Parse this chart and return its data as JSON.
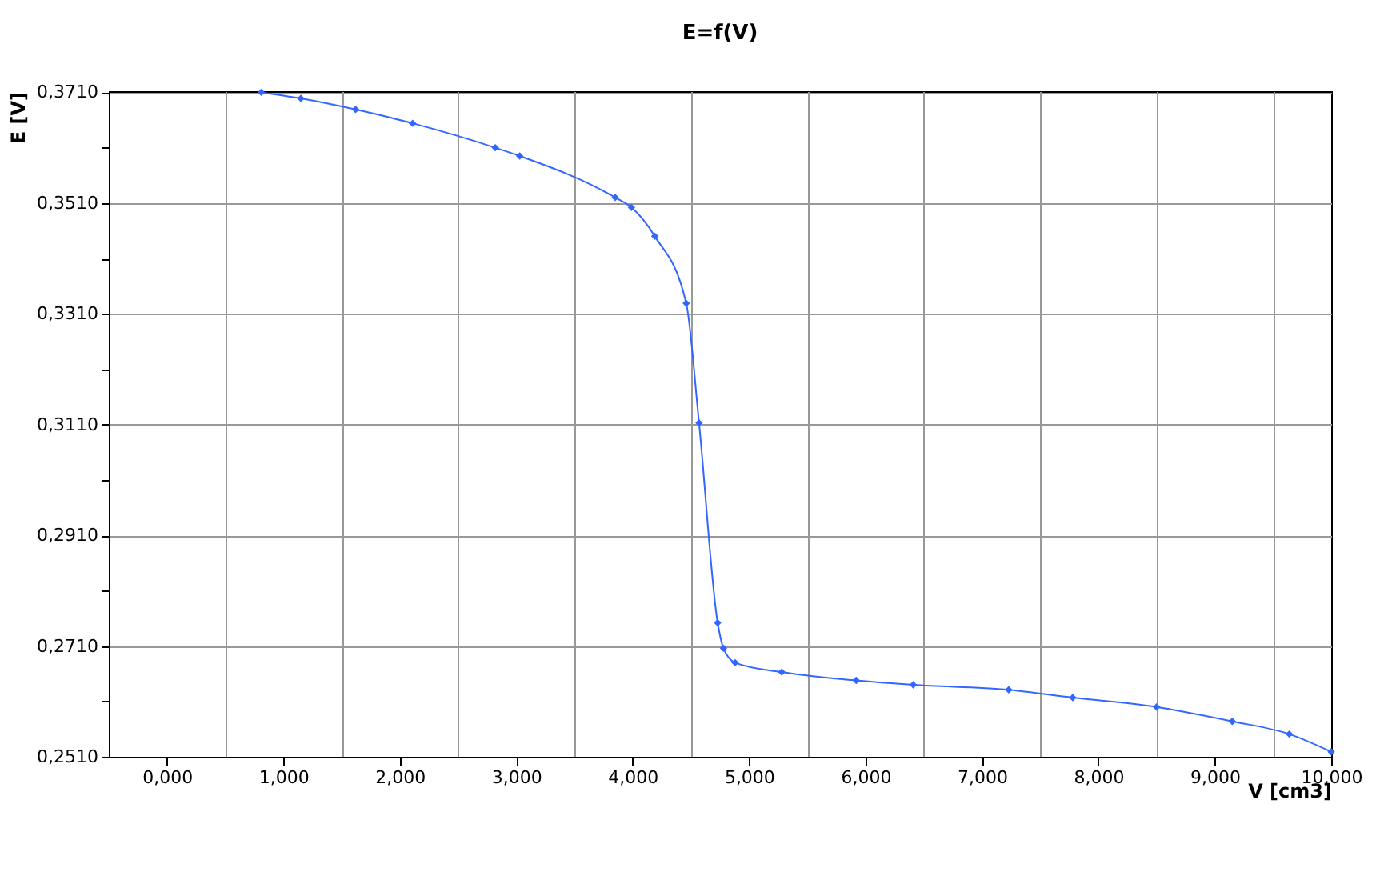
{
  "chart_data": {
    "type": "line",
    "title": "E=f(V)",
    "xlabel": "V [cm3]",
    "ylabel": "E [V]",
    "x": [
      0.81,
      1.15,
      1.62,
      2.11,
      2.82,
      3.03,
      3.85,
      3.99,
      4.19,
      4.46,
      4.57,
      4.73,
      4.78,
      4.88,
      5.28,
      5.92,
      6.41,
      7.23,
      7.78,
      8.5,
      9.15,
      9.64,
      10.0
    ],
    "series": [
      {
        "color": "#3366ff",
        "values": [
          0.371,
          0.3699,
          0.3679,
          0.3654,
          0.361,
          0.3595,
          0.352,
          0.3502,
          0.345,
          0.3329,
          0.3113,
          0.2752,
          0.2706,
          0.268,
          0.2663,
          0.2648,
          0.264,
          0.2631,
          0.2617,
          0.26,
          0.2574,
          0.2551,
          0.2519
        ]
      }
    ],
    "xlim": [
      -0.5,
      10
    ],
    "ylim": [
      0.251,
      0.3712
    ],
    "xticks": [
      {
        "value": 0,
        "label": "0,000"
      },
      {
        "value": 0.5,
        "label": null
      },
      {
        "value": 1,
        "label": "1,000"
      },
      {
        "value": 1.5,
        "label": null
      },
      {
        "value": 2,
        "label": "2,000"
      },
      {
        "value": 2.5,
        "label": null
      },
      {
        "value": 3,
        "label": "3,000"
      },
      {
        "value": 3.5,
        "label": null
      },
      {
        "value": 4,
        "label": "4,000"
      },
      {
        "value": 4.5,
        "label": null
      },
      {
        "value": 5,
        "label": "5,000"
      },
      {
        "value": 5.5,
        "label": null
      },
      {
        "value": 6,
        "label": "6,000"
      },
      {
        "value": 6.5,
        "label": null
      },
      {
        "value": 7,
        "label": "7,000"
      },
      {
        "value": 7.5,
        "label": null
      },
      {
        "value": 8,
        "label": "8,000"
      },
      {
        "value": 8.5,
        "label": null
      },
      {
        "value": 9,
        "label": "9,000"
      },
      {
        "value": 9.5,
        "label": null
      },
      {
        "value": 10,
        "label": "10,000"
      }
    ],
    "yticks": [
      {
        "value": 0.251,
        "label": "0,2510"
      },
      {
        "value": 0.261,
        "label": null
      },
      {
        "value": 0.271,
        "label": "0,2710"
      },
      {
        "value": 0.281,
        "label": null
      },
      {
        "value": 0.291,
        "label": "0,2910"
      },
      {
        "value": 0.301,
        "label": null
      },
      {
        "value": 0.311,
        "label": "0,3110"
      },
      {
        "value": 0.321,
        "label": null
      },
      {
        "value": 0.331,
        "label": "0,3310"
      },
      {
        "value": 0.341,
        "label": null
      },
      {
        "value": 0.351,
        "label": "0,3510"
      },
      {
        "value": 0.361,
        "label": null
      },
      {
        "value": 0.371,
        "label": "0,3710"
      }
    ],
    "grid": true,
    "marker": "diamond",
    "line_style": "solid"
  }
}
